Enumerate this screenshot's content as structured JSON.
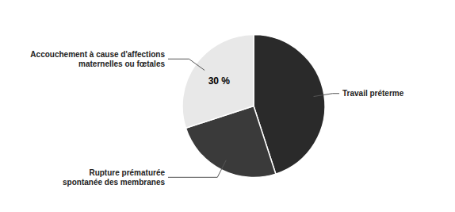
{
  "chart_data": {
    "type": "pie",
    "categories": [
      "Travail préterme",
      "Rupture prématurée\nspontanée des membranes",
      "Accouchement à cause d'affections\nmaternelles ou fœtales"
    ],
    "values": [
      45,
      25,
      30
    ],
    "colors": [
      "#2a2a2a",
      "#3a3a3a",
      "#e8e8e8"
    ],
    "data_labels": true,
    "value_labels": [
      null,
      null,
      "30 %"
    ]
  }
}
